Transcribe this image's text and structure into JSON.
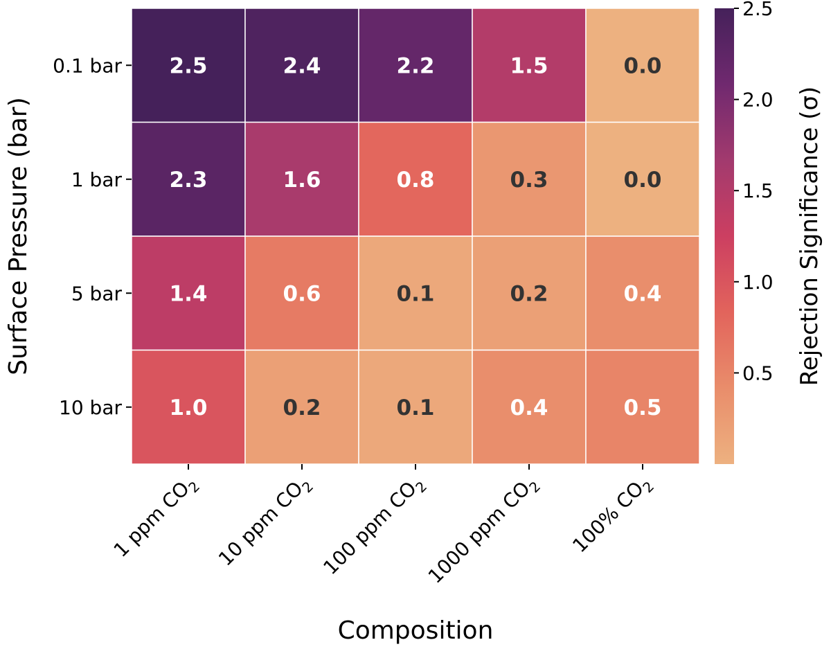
{
  "chart_data": {
    "type": "heatmap",
    "xlabel": "Composition",
    "ylabel": "Surface Pressure (bar)",
    "x_categories": [
      "1 ppm CO",
      "10 ppm CO",
      "100 ppm CO",
      "1000 ppm CO",
      "100% CO"
    ],
    "x_subscripts": [
      "2",
      "2",
      "2",
      "2",
      "2"
    ],
    "y_categories": [
      "0.1 bar",
      "1 bar",
      "5 bar",
      "10 bar"
    ],
    "values": [
      [
        2.5,
        2.4,
        2.2,
        1.5,
        0.0
      ],
      [
        2.3,
        1.6,
        0.8,
        0.3,
        0.0
      ],
      [
        1.4,
        0.6,
        0.1,
        0.2,
        0.4
      ],
      [
        1.0,
        0.2,
        0.1,
        0.4,
        0.5
      ]
    ],
    "colorbar": {
      "label": "Rejection Significance (σ)",
      "range": [
        0.0,
        2.5
      ],
      "ticks": [
        "0.5",
        "1.0",
        "1.5",
        "2.0",
        "2.5"
      ],
      "colormap": [
        "#edb180",
        "#e98d6b",
        "#e2645c",
        "#cc3f61",
        "#a23a6e",
        "#70296f",
        "#45215a"
      ]
    },
    "annotation_colors": {
      "light": "#ffffff",
      "dark": "#333333"
    }
  }
}
